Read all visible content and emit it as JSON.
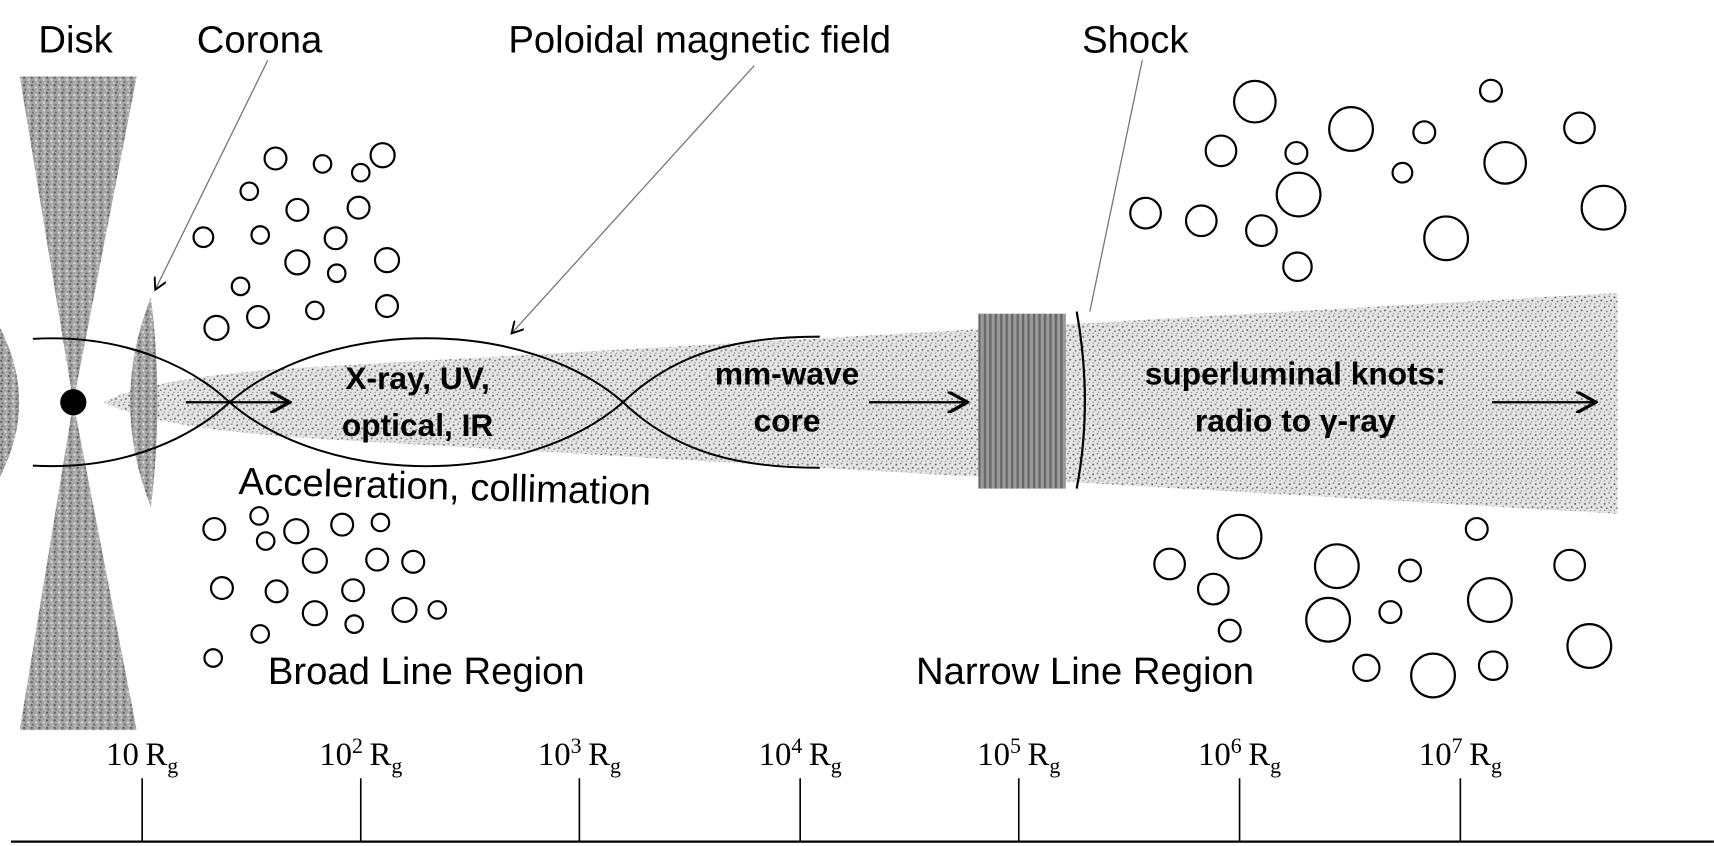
{
  "labels": {
    "disk": "Disk",
    "corona": "Corona",
    "poloidal_field": "Poloidal magnetic field",
    "shock": "Shock",
    "acceleration": "Acceleration, collimation",
    "blr": "Broad Line Region",
    "nlr": "Narrow Line Region"
  },
  "zones": [
    {
      "lines": [
        "X-ray, UV,",
        "optical, IR"
      ]
    },
    {
      "lines": [
        "mm-wave",
        "core"
      ]
    },
    {
      "lines": [
        "superluminal knots:",
        "radio to γ-ray"
      ]
    }
  ],
  "scale": [
    {
      "base": "10",
      "unit": "R",
      "sub": "g"
    },
    {
      "base": "10",
      "exp": "2",
      "unit": "R",
      "sub": "g"
    },
    {
      "base": "10",
      "exp": "3",
      "unit": "R",
      "sub": "g"
    },
    {
      "base": "10",
      "exp": "4",
      "unit": "R",
      "sub": "g"
    },
    {
      "base": "10",
      "exp": "5",
      "unit": "R",
      "sub": "g"
    },
    {
      "base": "10",
      "exp": "6",
      "unit": "R",
      "sub": "g"
    },
    {
      "base": "10",
      "exp": "7",
      "unit": "R",
      "sub": "g"
    }
  ]
}
